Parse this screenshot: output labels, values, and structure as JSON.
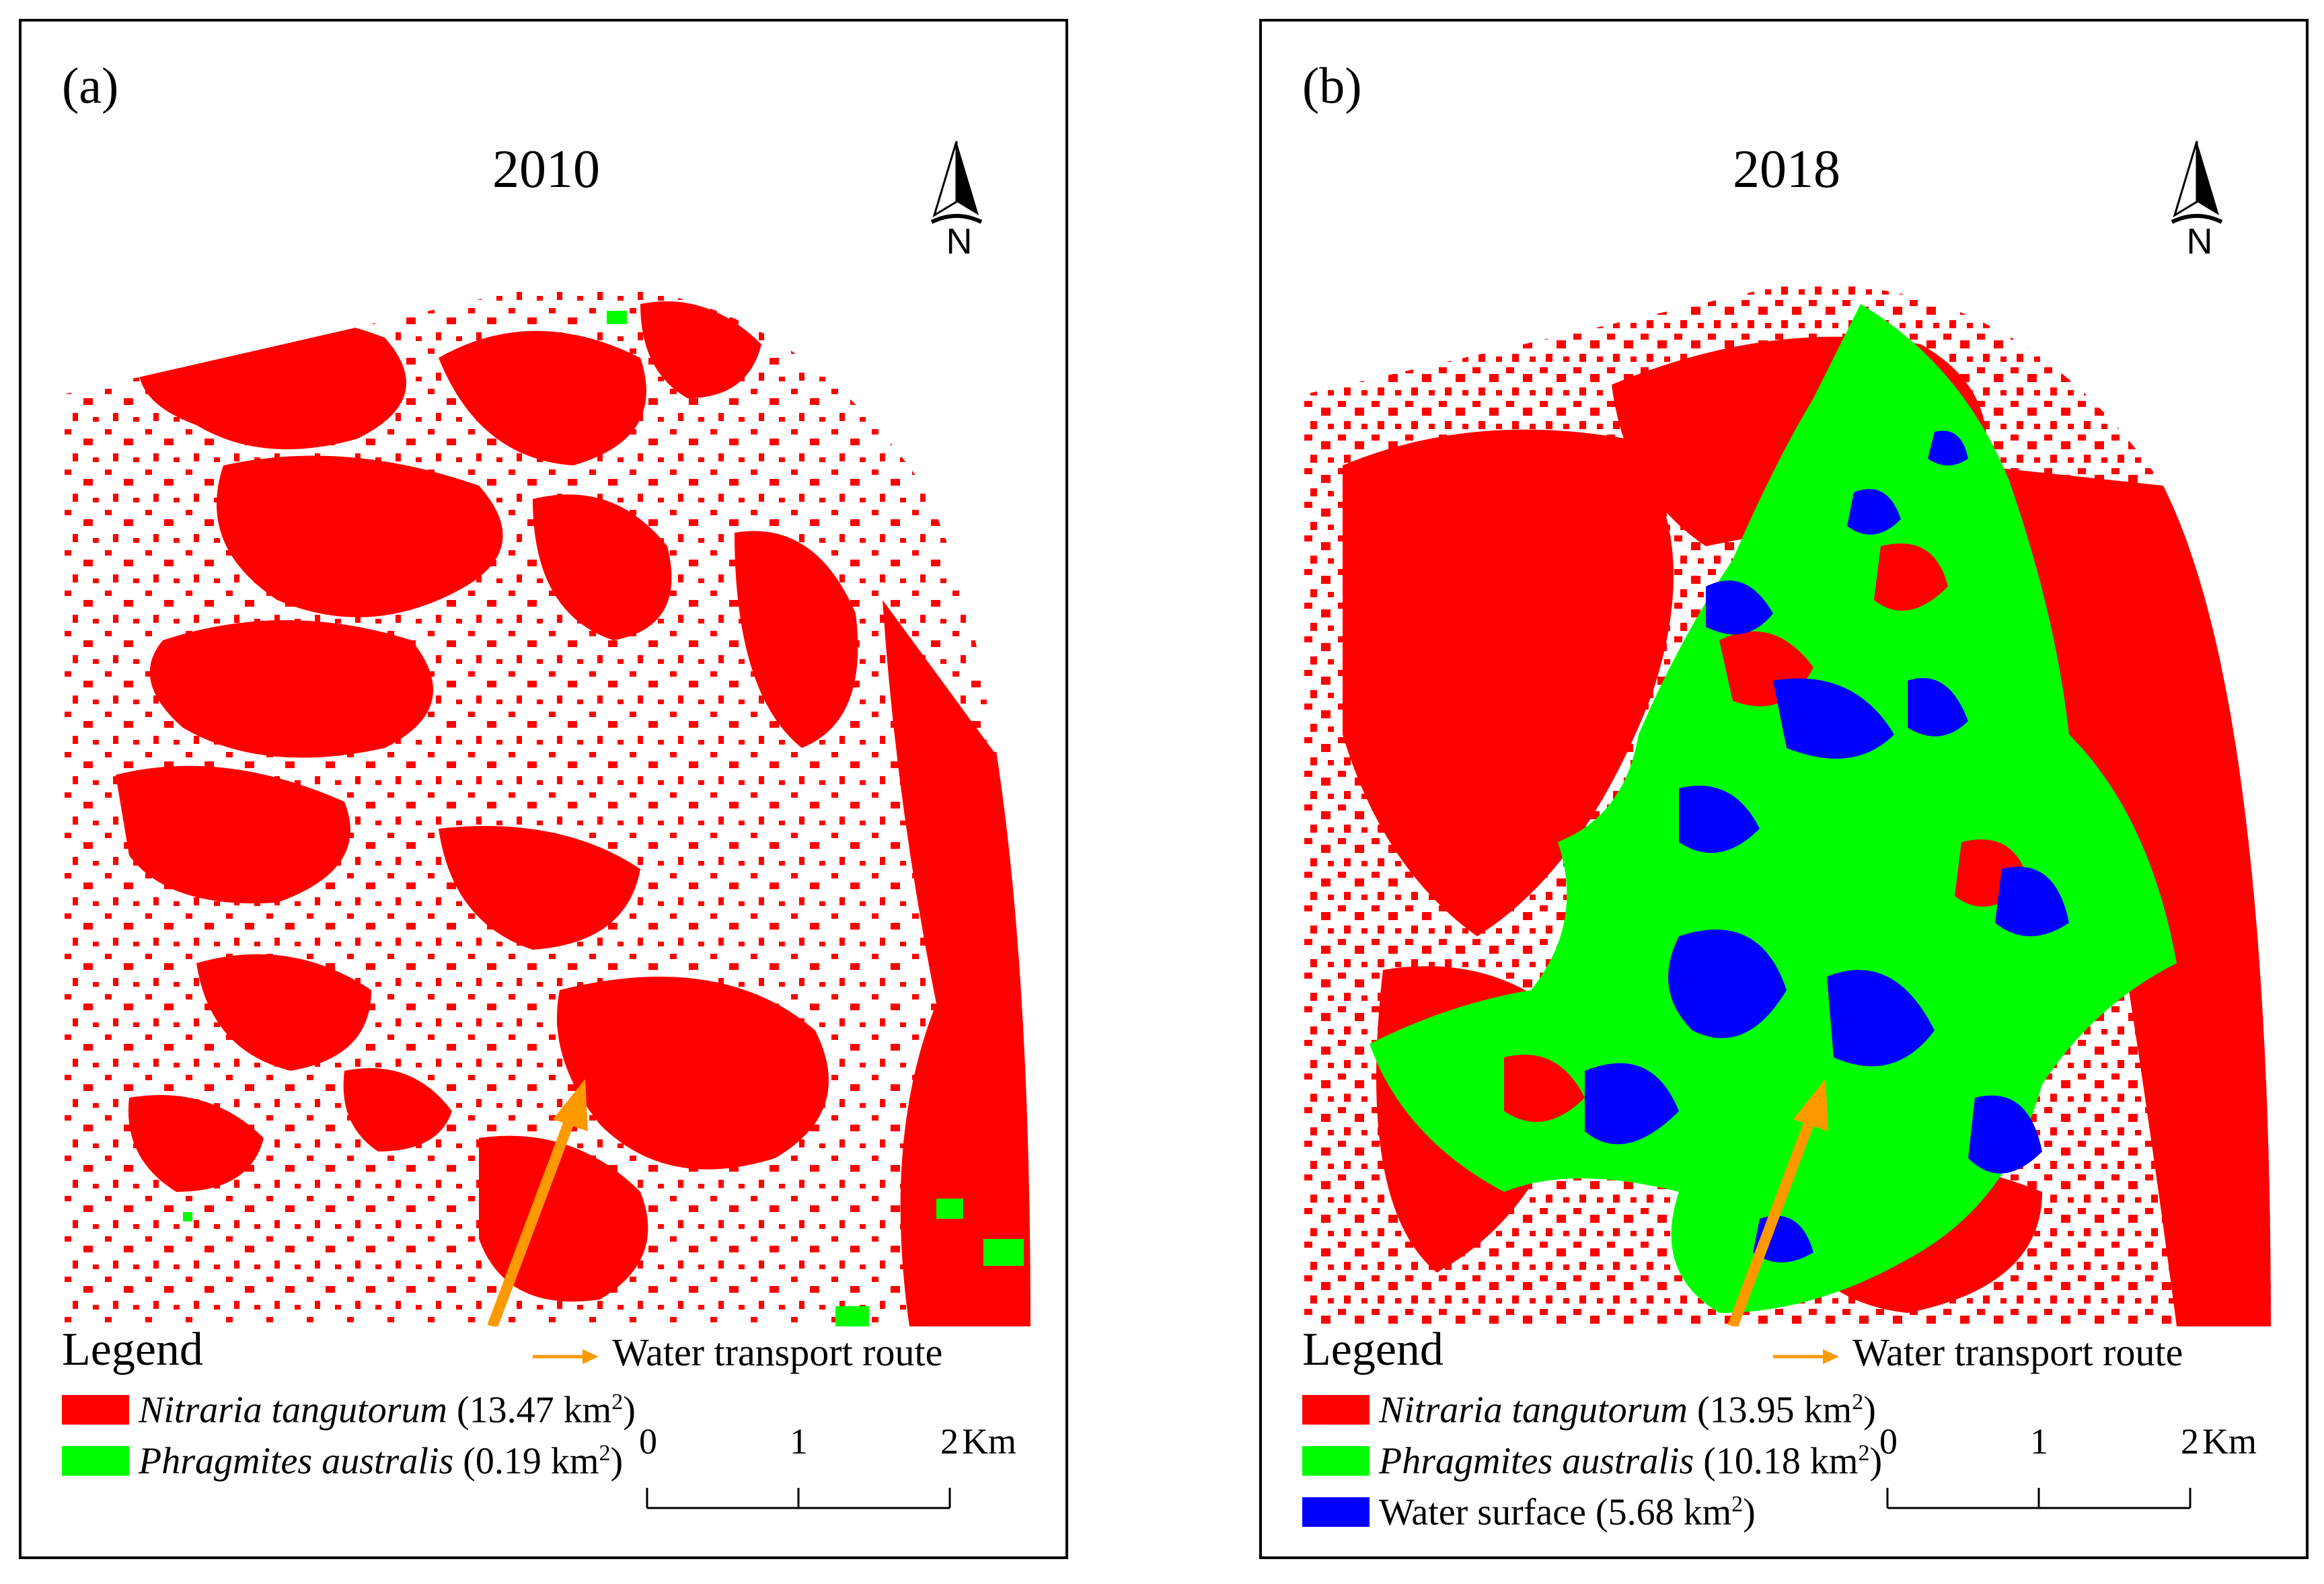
{
  "colors": {
    "nitraria": "#ff0000",
    "phragmites": "#00ff00",
    "water": "#0000ff",
    "route": "#ff9900"
  },
  "panels": [
    {
      "label": "(a)",
      "year": "2010",
      "north": "N",
      "legend": {
        "title": "Legend",
        "route": "Water transport route",
        "items": [
          {
            "name": "Nitraria tangutorum",
            "area": " (13.47 km",
            "sup": "2",
            "tail": ")"
          },
          {
            "name": "Phragmites australis",
            "area": " (0.19 km",
            "sup": "2",
            "tail": ")"
          }
        ]
      },
      "scale": {
        "ticks": [
          "0",
          "1",
          "2"
        ],
        "unit": "Km"
      }
    },
    {
      "label": "(b)",
      "year": "2018",
      "north": "N",
      "legend": {
        "title": "Legend",
        "route": "Water transport route",
        "items": [
          {
            "name": "Nitraria tangutorum",
            "area": " (13.95 km",
            "sup": "2",
            "tail": ")"
          },
          {
            "name": "Phragmites australis",
            "area": " (10.18 km",
            "sup": "2",
            "tail": ")"
          },
          {
            "name": "Water surface",
            "area": " (5.68 km",
            "sup": "2",
            "tail": ")"
          }
        ]
      },
      "scale": {
        "ticks": [
          "0",
          "1",
          "2"
        ],
        "unit": "Km"
      }
    }
  ]
}
